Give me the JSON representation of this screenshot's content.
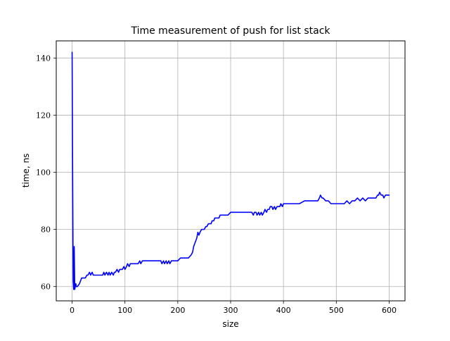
{
  "chart_data": {
    "type": "line",
    "title": "Time measurement of push for list stack",
    "xlabel": "size",
    "ylabel": "time, ns",
    "xlim": [
      -30,
      630
    ],
    "ylim": [
      55,
      146
    ],
    "xticks": [
      0,
      100,
      200,
      300,
      400,
      500,
      600
    ],
    "yticks": [
      60,
      80,
      100,
      120,
      140
    ],
    "grid": true,
    "colors": {
      "line": "#0000ff",
      "grid": "#b0b0b0",
      "axes": "#000000"
    },
    "series": [
      {
        "name": "",
        "color": "#0000ff",
        "x": [
          0,
          1,
          2,
          3,
          4,
          5,
          6,
          7,
          8,
          10,
          12,
          14,
          16,
          18,
          20,
          22,
          25,
          28,
          30,
          33,
          35,
          38,
          40,
          42,
          44,
          46,
          50,
          55,
          58,
          60,
          62,
          65,
          68,
          70,
          72,
          75,
          78,
          80,
          82,
          85,
          88,
          90,
          92,
          95,
          98,
          100,
          103,
          105,
          108,
          110,
          115,
          120,
          125,
          128,
          130,
          133,
          135,
          140,
          145,
          150,
          155,
          160,
          165,
          168,
          170,
          173,
          175,
          178,
          180,
          183,
          185,
          188,
          190,
          195,
          200,
          205,
          210,
          215,
          220,
          225,
          228,
          230,
          232,
          234,
          236,
          238,
          240,
          242,
          245,
          248,
          250,
          253,
          255,
          258,
          260,
          263,
          265,
          268,
          270,
          273,
          275,
          278,
          280,
          285,
          290,
          295,
          300,
          305,
          310,
          315,
          320,
          325,
          330,
          335,
          340,
          343,
          345,
          348,
          350,
          353,
          355,
          358,
          360,
          363,
          365,
          368,
          370,
          373,
          375,
          378,
          380,
          383,
          385,
          388,
          390,
          393,
          395,
          398,
          400,
          403,
          405,
          410,
          420,
          430,
          440,
          450,
          460,
          465,
          468,
          470,
          473,
          475,
          480,
          485,
          490,
          500,
          510,
          515,
          520,
          525,
          530,
          535,
          540,
          545,
          550,
          555,
          560,
          565,
          570,
          575,
          578,
          580,
          582,
          585,
          588,
          590,
          593,
          595,
          598,
          600
        ],
        "y": [
          142,
          100,
          62,
          59,
          74,
          59,
          60,
          61,
          60,
          60,
          60.5,
          61,
          62,
          63,
          63,
          63,
          63,
          64,
          64,
          65,
          64,
          65,
          64,
          64,
          64,
          64,
          64,
          64,
          64,
          65,
          64,
          65,
          64,
          65,
          64,
          65,
          64,
          65,
          65,
          66,
          65,
          66,
          66,
          66,
          67,
          66,
          67,
          68,
          67,
          68,
          68,
          68,
          68,
          69,
          68,
          69,
          69,
          69,
          69,
          69,
          69,
          69,
          69,
          69,
          68,
          69,
          68,
          69,
          68,
          69,
          68,
          69,
          69,
          69,
          69,
          70,
          70,
          70,
          70,
          71,
          72,
          74,
          75,
          76,
          77,
          79,
          78,
          79,
          80,
          80,
          80,
          81,
          81,
          82,
          82,
          82,
          83,
          83,
          84,
          84,
          84,
          84,
          85,
          85,
          85,
          85,
          86,
          86,
          86,
          86,
          86,
          86,
          86,
          86,
          86,
          85,
          86,
          86,
          85,
          86,
          85,
          86,
          85,
          86,
          87,
          86,
          87,
          87,
          88,
          88,
          87,
          88,
          87,
          88,
          88,
          88,
          89,
          88,
          89,
          89,
          89,
          89,
          89,
          89,
          90,
          90,
          90,
          90,
          91,
          92,
          91,
          91,
          90,
          90,
          89,
          89,
          89,
          89,
          90,
          89,
          90,
          90,
          91,
          90,
          91,
          90,
          91,
          91,
          91,
          91,
          92,
          92,
          93,
          92,
          92,
          91,
          92,
          92,
          92,
          92
        ]
      }
    ]
  }
}
